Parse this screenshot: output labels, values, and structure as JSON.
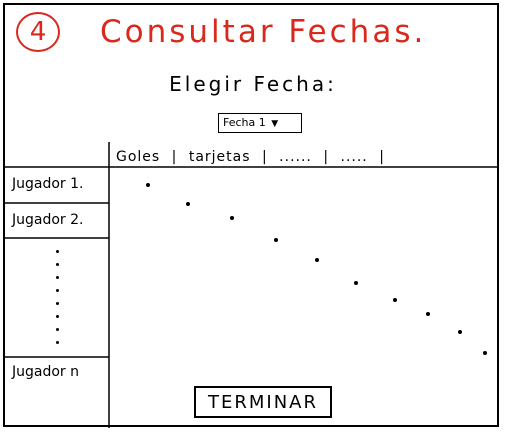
{
  "header": {
    "step_number": "4",
    "title": "Consultar Fechas."
  },
  "selector": {
    "prompt": "Elegir Fecha:",
    "dropdown_label": "Fecha 1"
  },
  "table": {
    "columns": [
      "Goles",
      "tarjetas",
      "......",
      "....."
    ],
    "players": [
      "Jugador 1.",
      "Jugador 2.",
      "Jugador n"
    ]
  },
  "footer": {
    "finish_label": "TERMINAR"
  },
  "colors": {
    "accent": "#d8291c",
    "ink": "#000000"
  }
}
